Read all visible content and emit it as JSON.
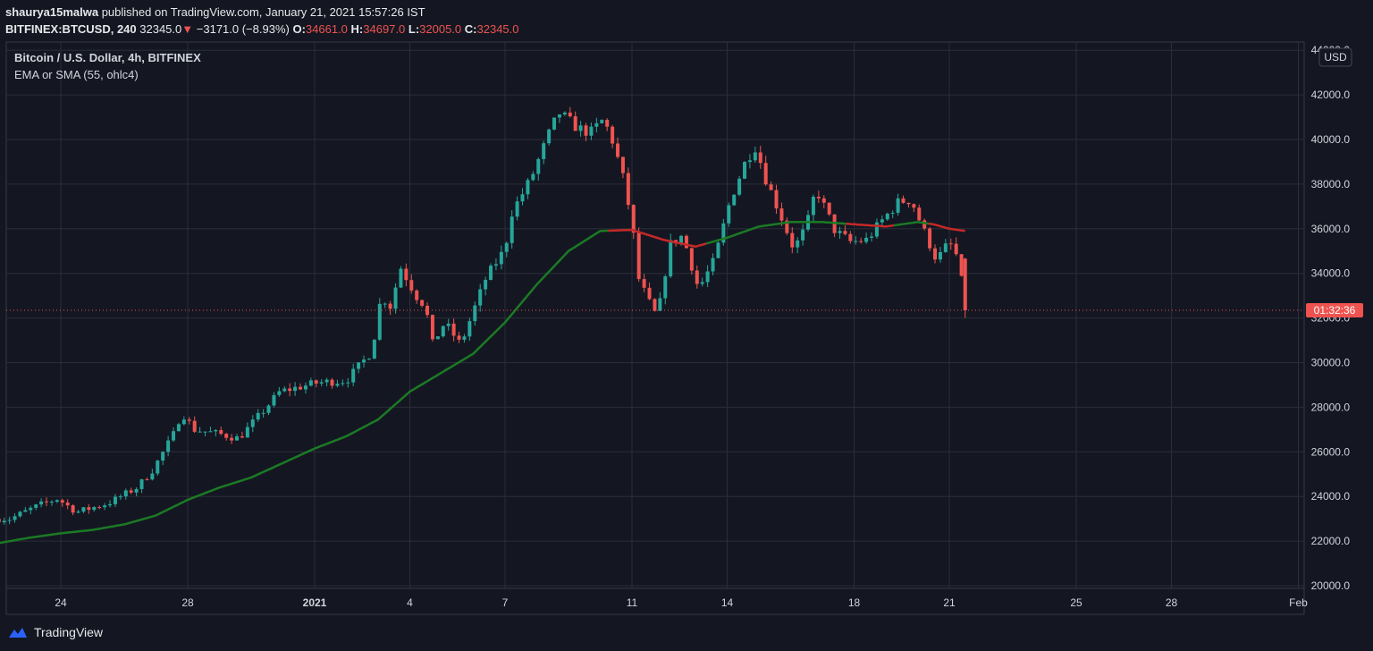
{
  "header": {
    "user": "shaurya15malwa",
    "published": "published on TradingView.com, January 21, 2021 15:57:26 IST",
    "symbol": "BITFINEX:BTCUSD, 240",
    "last": "32345.0",
    "change_arrow": "▼",
    "change": "−3171.0 (−8.93%)",
    "o_label": "O:",
    "o_value": "34661.0",
    "h_label": "H:",
    "h_value": "34697.0",
    "l_label": "L:",
    "l_value": "32005.0",
    "c_label": "C:",
    "c_value": "32345.0"
  },
  "legend": {
    "title": "Bitcoin / U.S. Dollar, 4h, BITFINEX",
    "indicator": "EMA or SMA (55, ohlc4)"
  },
  "currency_button": "USD",
  "countdown": "01:32:36",
  "footer": {
    "brand": "TradingView"
  },
  "colors": {
    "up": "#26a69a",
    "down": "#ef5350",
    "ma_up": "#1b7a24",
    "ma_down": "#c62828",
    "bg": "#141722",
    "grid": "#2a2e39"
  },
  "chart_data": {
    "type": "candlestick",
    "title": "Bitcoin / U.S. Dollar, 4h, BITFINEX",
    "ylim": [
      20000,
      44000
    ],
    "y_ticks": [
      "20000.0",
      "22000.0",
      "24000.0",
      "26000.0",
      "28000.0",
      "30000.0",
      "32000.0",
      "34000.0",
      "36000.0",
      "38000.0",
      "40000.0",
      "42000.0",
      "44000.0"
    ],
    "x_ticks": [
      {
        "label": "24",
        "day": 24
      },
      {
        "label": "28",
        "day": 28
      },
      {
        "label": "2021",
        "day": 32
      },
      {
        "label": "4",
        "day": 35
      },
      {
        "label": "7",
        "day": 38
      },
      {
        "label": "11",
        "day": 42
      },
      {
        "label": "14",
        "day": 45
      },
      {
        "label": "18",
        "day": 49
      },
      {
        "label": "21",
        "day": 52
      },
      {
        "label": "25",
        "day": 56
      },
      {
        "label": "28",
        "day": 59
      },
      {
        "label": "Feb",
        "day": 63
      }
    ],
    "price_anchors": [
      [
        22.4,
        23000
      ],
      [
        23.3,
        23600
      ],
      [
        23.9,
        23900
      ],
      [
        24.5,
        23300
      ],
      [
        25.5,
        23700
      ],
      [
        26.4,
        24400
      ],
      [
        26.9,
        25200
      ],
      [
        27.6,
        26900
      ],
      [
        27.8,
        27800
      ],
      [
        28.2,
        27000
      ],
      [
        29.0,
        26800
      ],
      [
        29.6,
        26600
      ],
      [
        30.3,
        27700
      ],
      [
        30.9,
        28700
      ],
      [
        31.5,
        28900
      ],
      [
        32.1,
        29100
      ],
      [
        33.0,
        29200
      ],
      [
        33.8,
        30500
      ],
      [
        34.1,
        33000
      ],
      [
        34.4,
        32500
      ],
      [
        34.7,
        34300
      ],
      [
        35.2,
        33000
      ],
      [
        35.5,
        32500
      ],
      [
        35.7,
        30800
      ],
      [
        36.1,
        31800
      ],
      [
        36.6,
        30800
      ],
      [
        37.0,
        32300
      ],
      [
        37.4,
        33800
      ],
      [
        38.0,
        35100
      ],
      [
        38.2,
        36700
      ],
      [
        38.8,
        38200
      ],
      [
        39.4,
        40300
      ],
      [
        39.7,
        41200
      ],
      [
        40.3,
        40500
      ],
      [
        40.7,
        40300
      ],
      [
        41.1,
        40900
      ],
      [
        41.4,
        39900
      ],
      [
        41.7,
        38400
      ],
      [
        42.0,
        36300
      ],
      [
        42.2,
        33800
      ],
      [
        42.5,
        32800
      ],
      [
        42.8,
        32000
      ],
      [
        43.2,
        35300
      ],
      [
        43.6,
        35700
      ],
      [
        44.1,
        33300
      ],
      [
        44.6,
        34600
      ],
      [
        45.1,
        37300
      ],
      [
        45.6,
        39100
      ],
      [
        45.9,
        39700
      ],
      [
        46.2,
        38300
      ],
      [
        46.8,
        36200
      ],
      [
        47.1,
        35100
      ],
      [
        47.5,
        36100
      ],
      [
        47.8,
        37800
      ],
      [
        48.4,
        35900
      ],
      [
        48.9,
        35400
      ],
      [
        49.4,
        35500
      ],
      [
        49.9,
        36400
      ],
      [
        50.4,
        37200
      ],
      [
        50.8,
        37300
      ],
      [
        51.2,
        35900
      ],
      [
        51.6,
        34600
      ],
      [
        52.0,
        35400
      ],
      [
        52.3,
        34600
      ],
      [
        52.5,
        32345
      ]
    ],
    "ma_anchors": [
      [
        22.0,
        21900
      ],
      [
        23.0,
        22150
      ],
      [
        24.0,
        22350
      ],
      [
        25.0,
        22500
      ],
      [
        26.0,
        22750
      ],
      [
        27.0,
        23150
      ],
      [
        28.0,
        23850
      ],
      [
        29.0,
        24400
      ],
      [
        30.0,
        24850
      ],
      [
        31.0,
        25500
      ],
      [
        32.0,
        26150
      ],
      [
        33.0,
        26700
      ],
      [
        34.0,
        27450
      ],
      [
        35.0,
        28700
      ],
      [
        36.0,
        29550
      ],
      [
        37.0,
        30400
      ],
      [
        38.0,
        31800
      ],
      [
        39.0,
        33500
      ],
      [
        40.0,
        35000
      ],
      [
        41.0,
        35900
      ],
      [
        42.0,
        35950
      ],
      [
        43.0,
        35500
      ],
      [
        44.0,
        35200
      ],
      [
        45.0,
        35600
      ],
      [
        46.0,
        36100
      ],
      [
        47.0,
        36300
      ],
      [
        48.0,
        36300
      ],
      [
        49.0,
        36200
      ],
      [
        50.0,
        36100
      ],
      [
        51.0,
        36300
      ],
      [
        51.5,
        36200
      ],
      [
        52.0,
        36000
      ],
      [
        52.5,
        35900
      ]
    ],
    "ma_red_segments": [
      [
        41.2,
        44.3
      ],
      [
        48.7,
        50.2
      ],
      [
        51.3,
        52.5
      ]
    ],
    "last_price": 32345.0
  }
}
